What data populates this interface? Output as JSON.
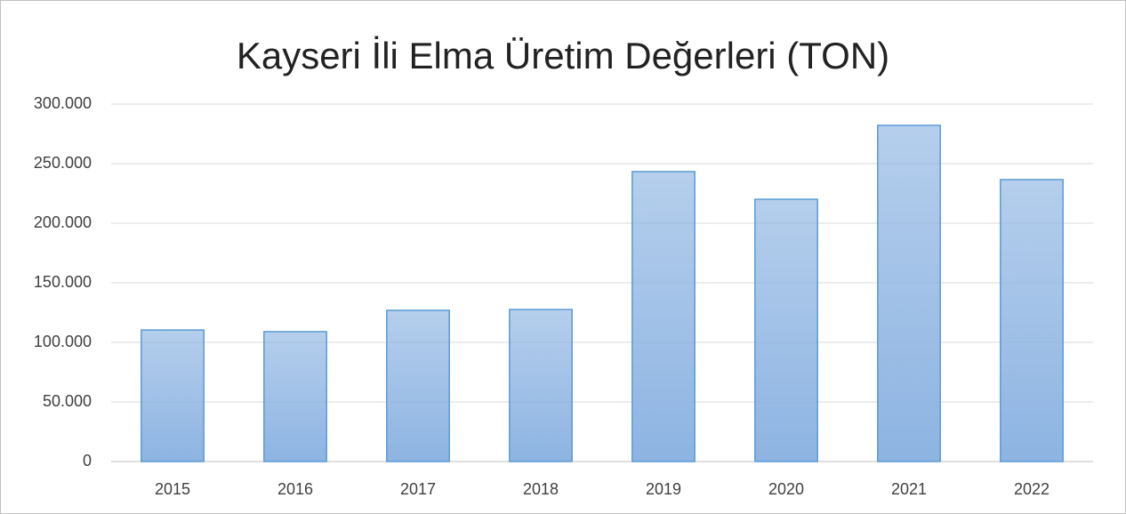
{
  "chart_data": {
    "type": "bar",
    "title": "Kayseri İli Elma Üretim Değerleri (TON)",
    "categories": [
      "2015",
      "2016",
      "2017",
      "2018",
      "2019",
      "2020",
      "2021",
      "2022"
    ],
    "values": [
      110400,
      109000,
      126900,
      127600,
      243300,
      220100,
      282100,
      236600
    ],
    "color": "#8db4e2",
    "edge_color": "#5b9bd5",
    "ylim": [
      0,
      300000
    ],
    "yticks": [
      0,
      {
        "value": 50000,
        "label": "50.000"
      },
      {
        "value": 100000,
        "label": "100.000"
      },
      {
        "value": 150000,
        "label": "150.000"
      },
      {
        "value": 200000,
        "label": "200.000"
      },
      {
        "value": 250000,
        "label": "250.000"
      },
      {
        "value": 300000,
        "label": "300.000"
      }
    ],
    "grid": true
  }
}
